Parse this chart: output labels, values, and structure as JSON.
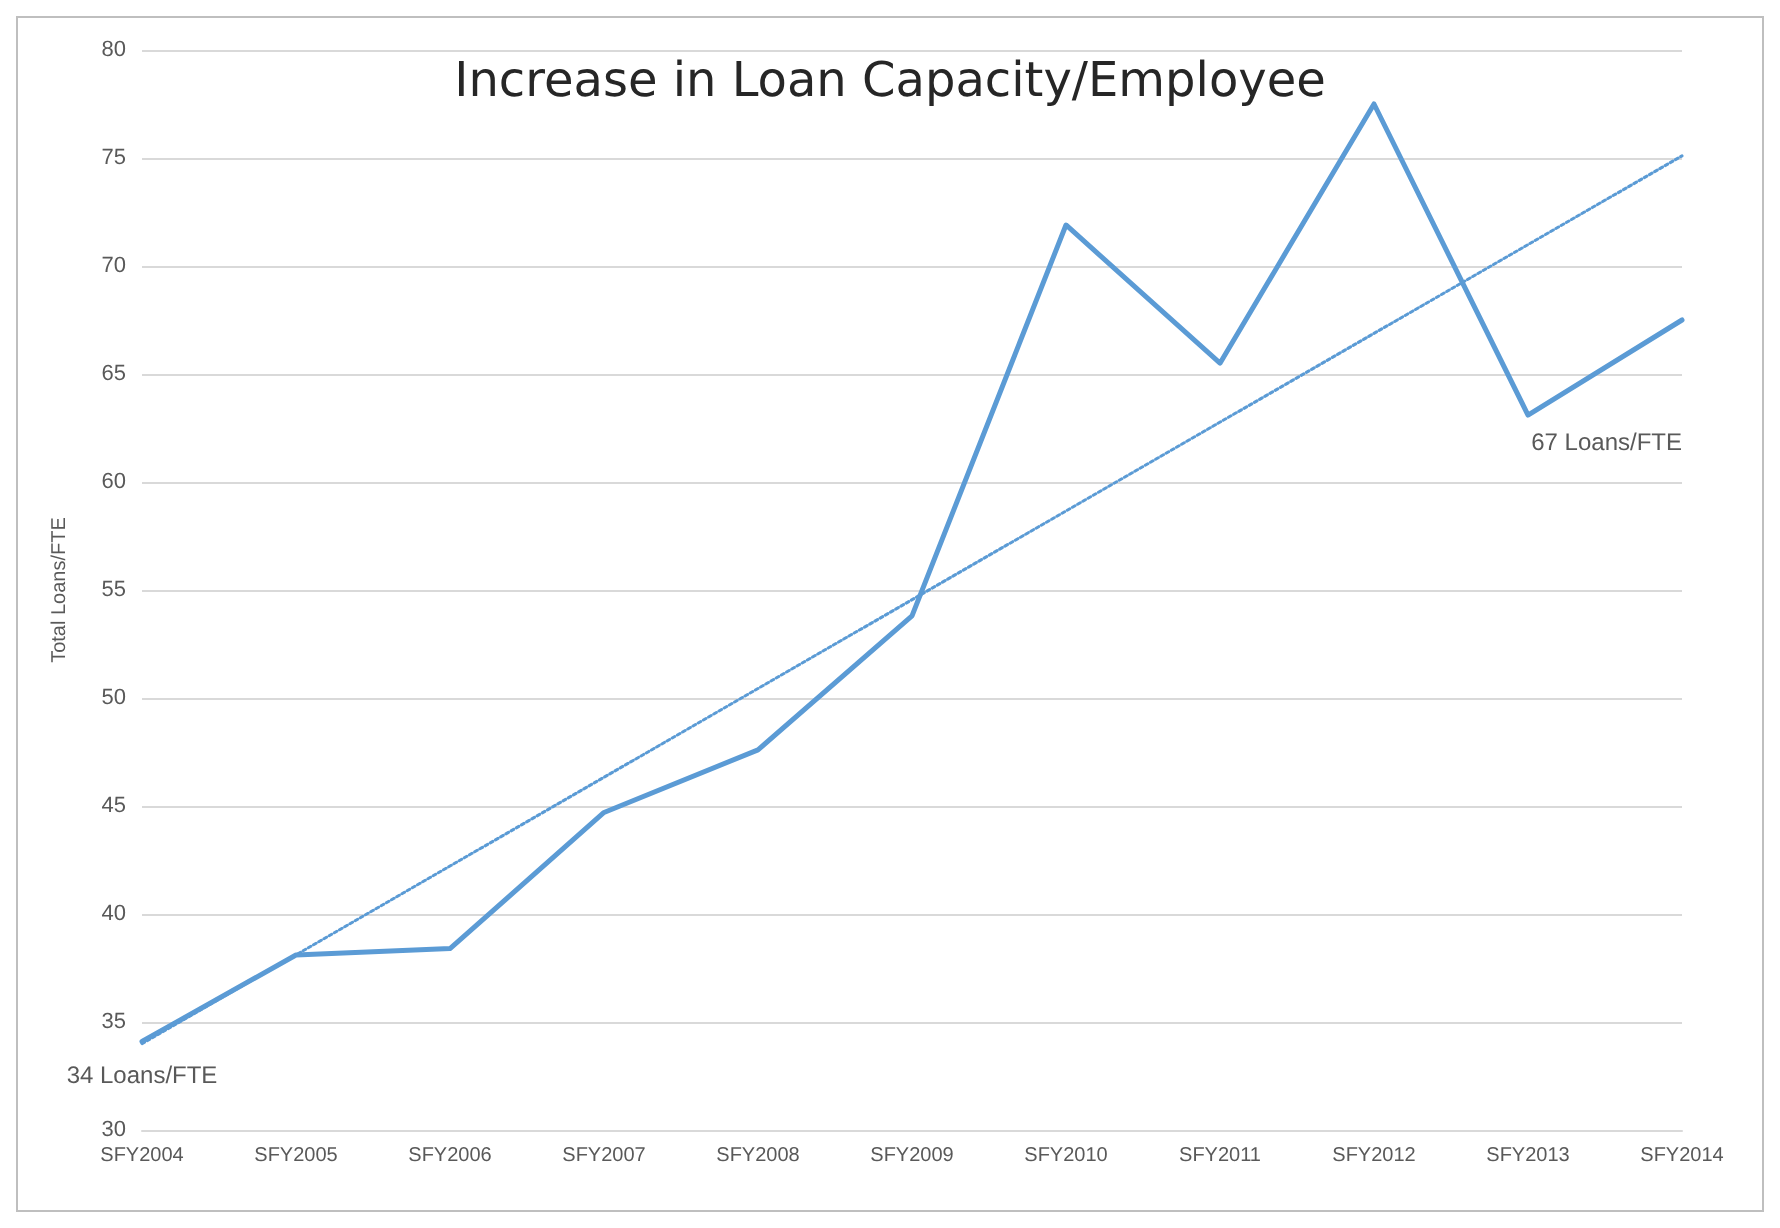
{
  "chart_data": {
    "type": "line",
    "title": "Increase in Loan Capacity/Employee",
    "ylabel": "Total Loans/FTE",
    "categories": [
      "SFY2004",
      "SFY2005",
      "SFY2006",
      "SFY2007",
      "SFY2008",
      "SFY2009",
      "SFY2010",
      "SFY2011",
      "SFY2012",
      "SFY2013",
      "SFY2014"
    ],
    "series": [
      {
        "color": "#5b9bd5",
        "values": [
          34.1,
          38.1,
          38.4,
          44.7,
          47.6,
          53.8,
          71.9,
          65.5,
          77.5,
          63.1,
          67.5
        ]
      },
      {
        "type": "line",
        "color": "#5b9bd5",
        "line_style": "dotted",
        "x": [
          "SFY2004",
          "SFY2014"
        ],
        "values": [
          34.0,
          75.1
        ]
      }
    ],
    "ylim": [
      30,
      80
    ],
    "yticks": [
      30,
      35,
      40,
      45,
      50,
      55,
      60,
      65,
      70,
      75,
      80
    ],
    "grid": "y",
    "marker": "none",
    "line_style": "solid",
    "annotations": [
      {
        "text": "34 Loans/FTE",
        "x": "SFY2004",
        "y": 34.1
      },
      "67 Loans/FTE"
    ]
  }
}
